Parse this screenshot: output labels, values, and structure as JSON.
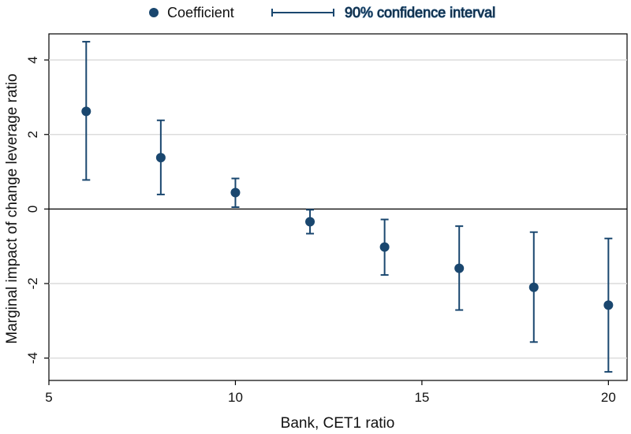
{
  "chart_data": {
    "type": "scatter",
    "title": "",
    "xlabel": "Bank, CET1 ratio",
    "ylabel": "Marginal impact of change leverage ratio",
    "xlim": [
      5,
      20.5
    ],
    "ylim": [
      -4.6,
      4.7
    ],
    "x_ticks": [
      5,
      10,
      15,
      20
    ],
    "y_ticks": [
      -4,
      -2,
      0,
      2,
      4
    ],
    "grid": true,
    "legend_position": "top",
    "legend": {
      "coefficient_label": "Coefficient",
      "ci_label": "90% confidence interval"
    },
    "series": [
      {
        "name": "Coefficient",
        "x": [
          6,
          8,
          10,
          12,
          14,
          16,
          18,
          20
        ],
        "y": [
          2.62,
          1.38,
          0.44,
          -0.34,
          -1.02,
          -1.59,
          -2.1,
          -2.58
        ],
        "ci_low": [
          0.78,
          0.39,
          0.05,
          -0.66,
          -1.77,
          -2.71,
          -3.57,
          -4.37
        ],
        "ci_high": [
          4.49,
          2.38,
          0.82,
          -0.02,
          -0.28,
          -0.46,
          -0.62,
          -0.79
        ]
      }
    ],
    "colors": {
      "marker": "#1a476f",
      "grid": "#dcdcdc",
      "zero_line": "#000000",
      "frame": "#000000"
    }
  }
}
